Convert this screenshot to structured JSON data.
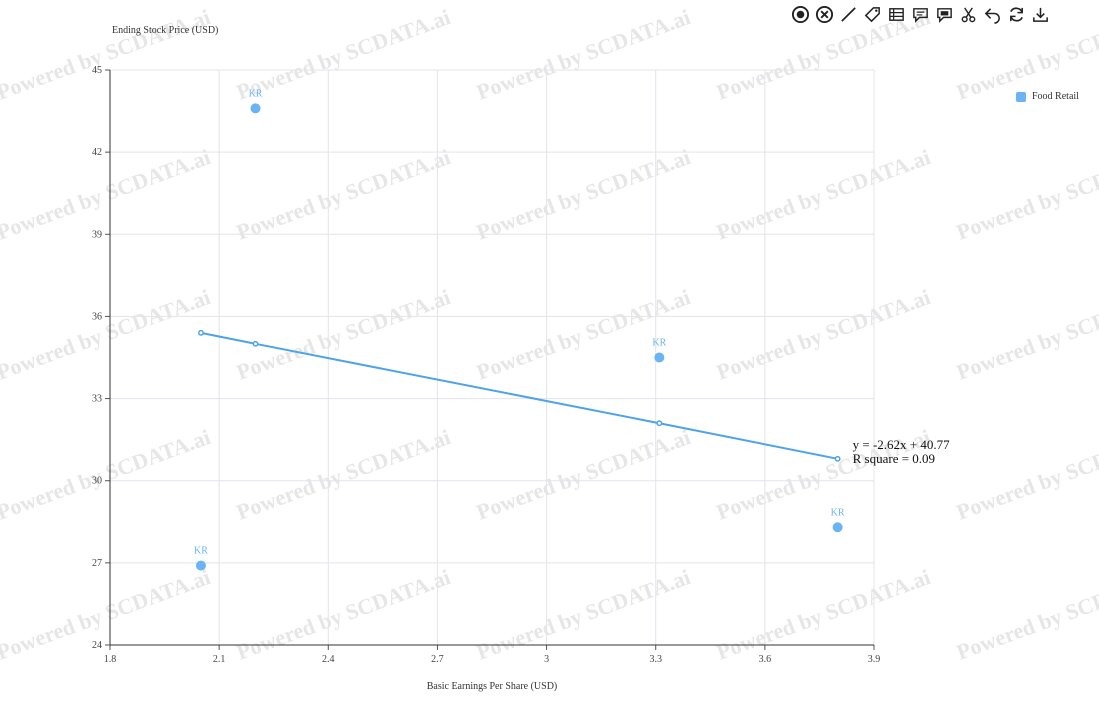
{
  "watermark": "Powered by SCDATA.ai",
  "toolbar": [
    {
      "name": "record-icon"
    },
    {
      "name": "clear-icon"
    },
    {
      "name": "line-draw-icon"
    },
    {
      "name": "tag-icon"
    },
    {
      "name": "table-icon"
    },
    {
      "name": "comment-icon"
    },
    {
      "name": "image-comment-icon"
    },
    {
      "name": "scissors-icon"
    },
    {
      "name": "undo-icon"
    },
    {
      "name": "refresh-icon"
    },
    {
      "name": "download-icon"
    }
  ],
  "legend": {
    "label": "Food Retail",
    "color": "#6ab4f5"
  },
  "chart_data": {
    "type": "scatter",
    "xlabel": "Basic Earnings Per Share (USD)",
    "ylabel": "Ending Stock Price (USD)",
    "xlim": [
      1.8,
      3.9
    ],
    "ylim": [
      24,
      45
    ],
    "xticks": [
      "1.8",
      "2.1",
      "2.4",
      "2.7",
      "3",
      "3.3",
      "3.6",
      "3.9"
    ],
    "yticks": [
      "24",
      "27",
      "30",
      "33",
      "36",
      "39",
      "42",
      "45"
    ],
    "grid": true,
    "legend_position": "top-right",
    "series": [
      {
        "name": "Food Retail",
        "color": "#6ab4f5",
        "points": [
          {
            "x": 2.2,
            "y": 43.6,
            "label": "KR"
          },
          {
            "x": 2.05,
            "y": 26.9,
            "label": "KR"
          },
          {
            "x": 3.31,
            "y": 34.5,
            "label": "KR"
          },
          {
            "x": 3.8,
            "y": 28.3,
            "label": "KR"
          }
        ]
      }
    ],
    "trendline": {
      "color": "#4da3ec",
      "equation": "y = -2.62x + 40.77",
      "r_square": "R square = 0.09",
      "points": [
        {
          "x": 2.05,
          "y": 35.4
        },
        {
          "x": 2.2,
          "y": 35.0
        },
        {
          "x": 3.31,
          "y": 32.1
        },
        {
          "x": 3.8,
          "y": 30.8
        }
      ]
    }
  }
}
